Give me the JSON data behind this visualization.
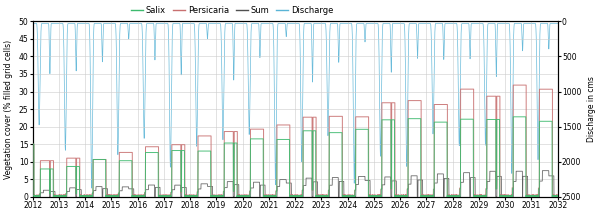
{
  "legend_labels": [
    "Salix",
    "Persicaria",
    "Sum",
    "Discharge"
  ],
  "line_colors": {
    "salix": "#3dba6e",
    "persicaria": "#c87070",
    "sum": "#505050",
    "discharge": "#5ab4d6"
  },
  "ylabel_left": "Vegetation cover (% filled grid cells)",
  "ylabel_right": "Discharge in cms",
  "ylim_left": [
    0,
    50
  ],
  "ylim_right_top": 0,
  "ylim_right_bottom": 2500,
  "yticks_left": [
    0,
    5,
    10,
    15,
    20,
    25,
    30,
    35,
    40,
    45,
    50
  ],
  "yticks_right": [
    0,
    500,
    1000,
    1500,
    2000,
    2500
  ],
  "year_start": 2012,
  "year_end": 2032,
  "xticks": [
    2012,
    2013,
    2014,
    2015,
    2016,
    2017,
    2018,
    2019,
    2020,
    2021,
    2022,
    2023,
    2024,
    2025,
    2026,
    2027,
    2028,
    2029,
    2030,
    2031,
    2032
  ],
  "grid_color": "#cccccc",
  "background_color": "#ffffff",
  "linewidth_veg": 0.7,
  "linewidth_discharge": 0.5,
  "fontsize_axis": 5.5,
  "fontsize_legend": 6,
  "fontsize_tick": 5.5
}
